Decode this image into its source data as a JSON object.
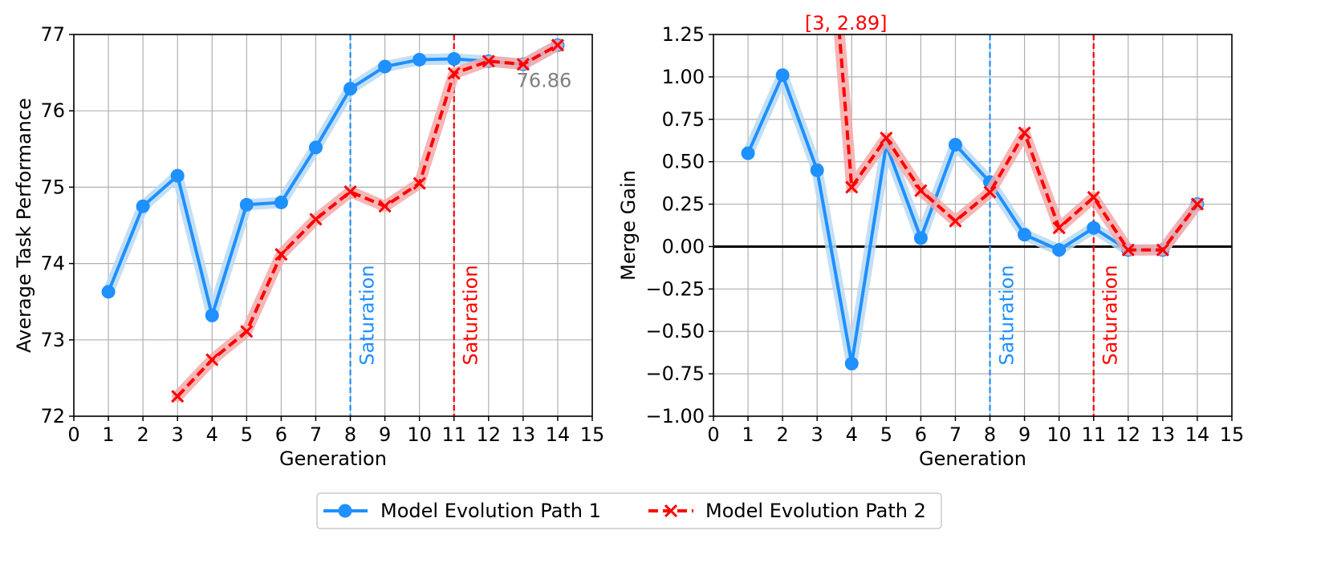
{
  "chart_data": [
    {
      "type": "line",
      "xlabel": "Generation",
      "ylabel": "Average Task Performance",
      "xlim": [
        0,
        15
      ],
      "ylim": [
        72,
        77
      ],
      "xticks": [
        0,
        1,
        2,
        3,
        4,
        5,
        6,
        7,
        8,
        9,
        10,
        11,
        12,
        13,
        14,
        15
      ],
      "yticks": [
        72,
        73,
        74,
        75,
        76,
        77
      ],
      "grid": true,
      "series": [
        {
          "name": "Model Evolution Path 1",
          "x": [
            1,
            2,
            3,
            4,
            5,
            6,
            7,
            8,
            9,
            10,
            11,
            12,
            13,
            14
          ],
          "y": [
            73.63,
            74.75,
            75.15,
            73.32,
            74.77,
            74.8,
            75.52,
            76.29,
            76.58,
            76.67,
            76.68,
            76.65,
            76.61,
            76.86
          ]
        },
        {
          "name": "Model Evolution Path 2",
          "x": [
            3,
            4,
            5,
            6,
            7,
            8,
            9,
            10,
            11,
            12,
            13,
            14
          ],
          "y": [
            72.26,
            72.74,
            73.11,
            74.12,
            74.58,
            74.94,
            74.75,
            75.05,
            76.49,
            76.65,
            76.61,
            76.86
          ]
        }
      ],
      "vlines": [
        {
          "x": 8,
          "label": "Saturation",
          "series": 0
        },
        {
          "x": 11,
          "label": "Saturation",
          "series": 1
        }
      ],
      "annotation": {
        "text": "76.86",
        "x": 14,
        "y": 76.86
      }
    },
    {
      "type": "line",
      "xlabel": "Generation",
      "ylabel": "Merge Gain",
      "xlim": [
        0,
        15
      ],
      "ylim": [
        -1.0,
        1.25
      ],
      "xticks": [
        0,
        1,
        2,
        3,
        4,
        5,
        6,
        7,
        8,
        9,
        10,
        11,
        12,
        13,
        14,
        15
      ],
      "yticks": [
        -1.0,
        -0.75,
        -0.5,
        -0.25,
        0.0,
        0.25,
        0.5,
        0.75,
        1.0,
        1.25
      ],
      "ytick_labels": [
        "−1.00",
        "−0.75",
        "−0.50",
        "−0.25",
        "0.00",
        "0.25",
        "0.50",
        "0.75",
        "1.00",
        "1.25"
      ],
      "grid": true,
      "hline": 0,
      "series": [
        {
          "name": "Model Evolution Path 1",
          "x": [
            1,
            2,
            3,
            4,
            5,
            6,
            7,
            8,
            9,
            10,
            11,
            12,
            13,
            14
          ],
          "y": [
            0.55,
            1.01,
            0.45,
            -0.69,
            0.6,
            0.05,
            0.6,
            0.38,
            0.07,
            -0.02,
            0.11,
            -0.02,
            -0.02,
            0.25
          ]
        },
        {
          "name": "Model Evolution Path 2",
          "x": [
            3,
            4,
            5,
            6,
            7,
            8,
            9,
            10,
            11,
            12,
            13,
            14
          ],
          "y": [
            2.89,
            0.35,
            0.64,
            0.33,
            0.15,
            0.32,
            0.67,
            0.11,
            0.29,
            -0.02,
            -0.02,
            0.25
          ]
        }
      ],
      "vlines": [
        {
          "x": 8,
          "label": "Saturation",
          "series": 0
        },
        {
          "x": 11,
          "label": "Saturation",
          "series": 1
        }
      ],
      "annotation": {
        "text": "[3, 2.89]",
        "x": 3,
        "y": 2.89
      }
    }
  ],
  "legend": {
    "location": "bottom-center",
    "entries": [
      "Model Evolution Path 1",
      "Model Evolution Path 2"
    ]
  },
  "colors": {
    "series1": "#1e90ff",
    "series1_shadow": "#b9d9f3",
    "series2": "#ff0000",
    "series2_shadow": "#f4a9a9",
    "grid": "#b0b0b0",
    "annotation_gray": "#808080"
  }
}
